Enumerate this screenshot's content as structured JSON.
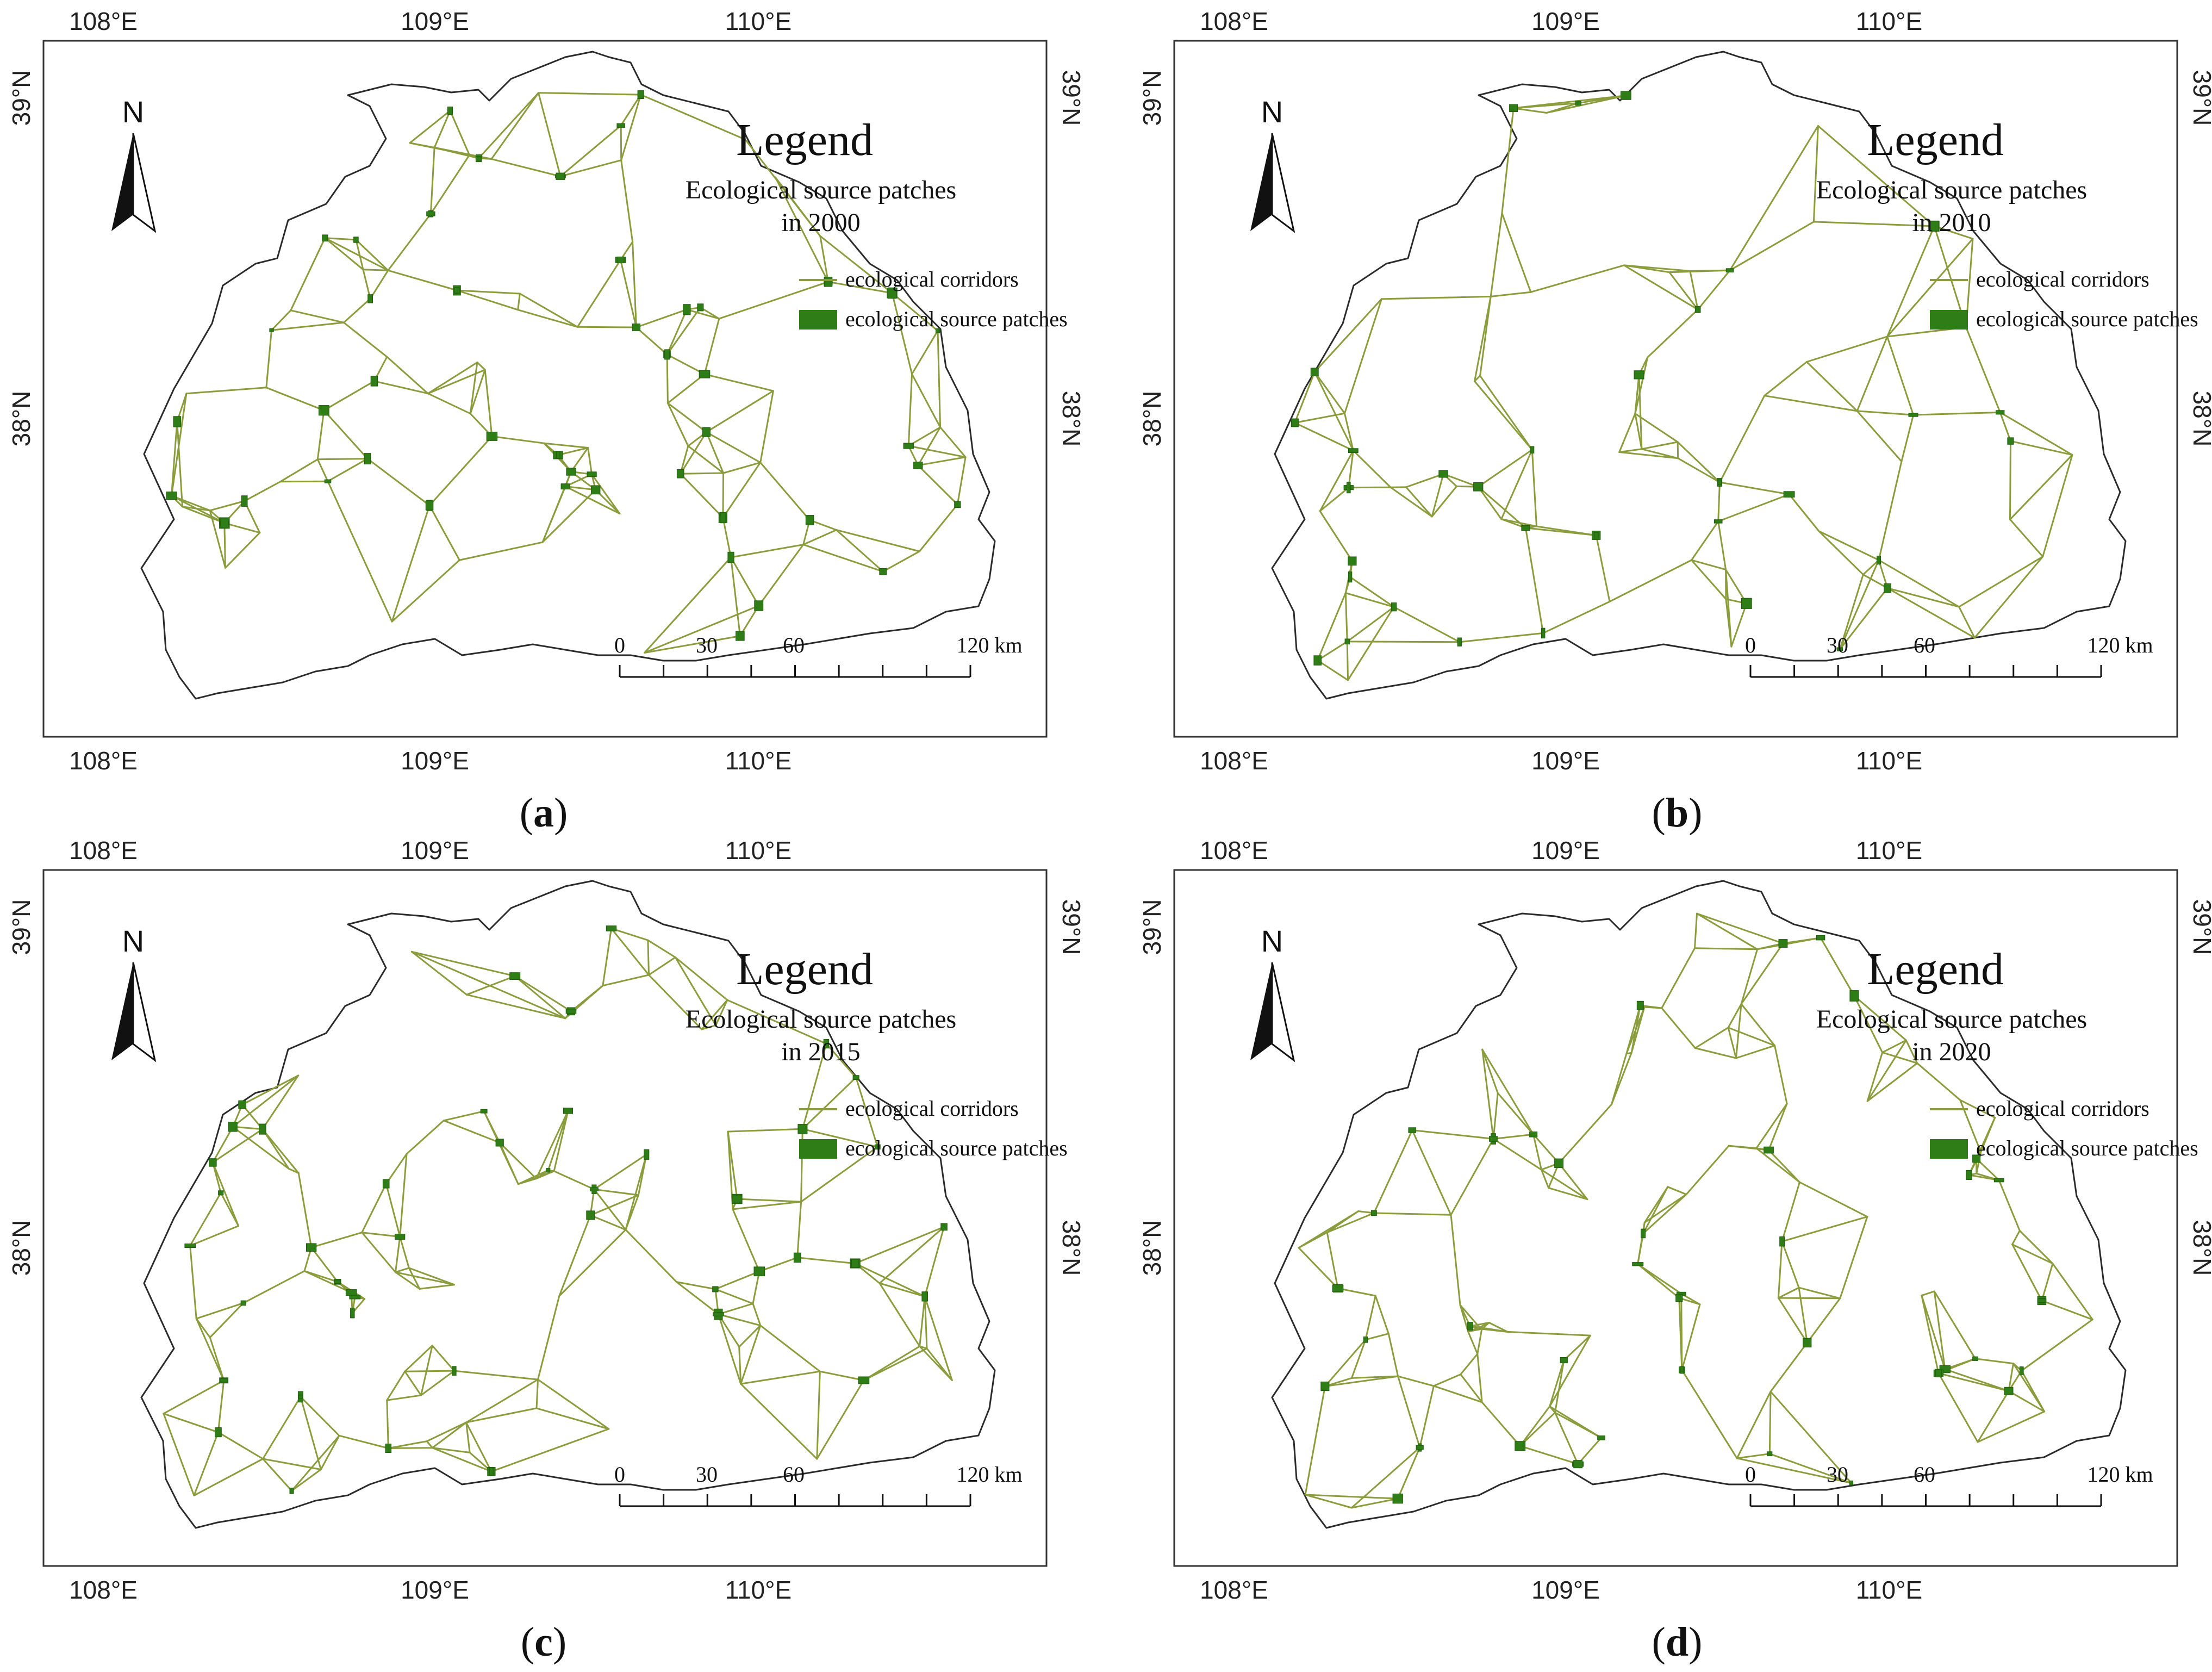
{
  "panels": [
    {
      "id": "a",
      "caption_letter": "a",
      "legend_title": "Legend",
      "legend_subtitle_line1": "Ecological source patches",
      "legend_subtitle_line2": "in 2000",
      "legend_items": [
        {
          "label": "ecological corridors",
          "color": "#8b9c3c",
          "symbol": "line"
        },
        {
          "label": "ecological source patches",
          "color": "#2e7d16",
          "symbol": "box"
        }
      ]
    },
    {
      "id": "b",
      "caption_letter": "b",
      "legend_title": "Legend",
      "legend_subtitle_line1": "Ecological source patches",
      "legend_subtitle_line2": "in 2010",
      "legend_items": [
        {
          "label": "ecological corridors",
          "color": "#8b9c3c",
          "symbol": "line"
        },
        {
          "label": "ecological source patches",
          "color": "#2e7d16",
          "symbol": "box"
        }
      ]
    },
    {
      "id": "c",
      "caption_letter": "c",
      "legend_title": "Legend",
      "legend_subtitle_line1": "Ecological source patches",
      "legend_subtitle_line2": "in 2015",
      "legend_items": [
        {
          "label": "ecological corridors",
          "color": "#8b9c3c",
          "symbol": "line"
        },
        {
          "label": "ecological source patches",
          "color": "#2e7d16",
          "symbol": "box"
        }
      ]
    },
    {
      "id": "d",
      "caption_letter": "d",
      "legend_title": "Legend",
      "legend_subtitle_line1": "Ecological source patches",
      "legend_subtitle_line2": "in 2020",
      "legend_items": [
        {
          "label": "ecological corridors",
          "color": "#8b9c3c",
          "symbol": "line"
        },
        {
          "label": "ecological source patches",
          "color": "#2e7d16",
          "symbol": "box"
        }
      ]
    }
  ],
  "longitude_labels": [
    "108°E",
    "109°E",
    "110°E"
  ],
  "latitude_labels": [
    "39°N",
    "38°N"
  ],
  "north_arrow_label": "N",
  "scale_bar": {
    "labels": [
      "0",
      "30",
      "60",
      "120 km"
    ],
    "ticks_km": [
      0,
      15,
      30,
      45,
      60,
      75,
      90,
      105,
      120
    ]
  },
  "colors": {
    "corridor": "#8b9c3c",
    "patch": "#2e7d16",
    "boundary": "#2b2b2b"
  }
}
